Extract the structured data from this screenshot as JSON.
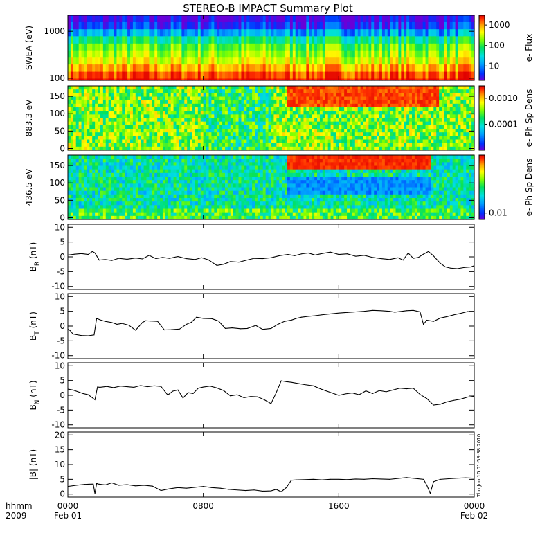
{
  "title": "STEREO-B IMPACT Summary Plot",
  "x_axis": {
    "row1_label": "hhmm",
    "row2_label": "2009",
    "ticks": [
      {
        "t": 0,
        "time": "0000",
        "date": "Feb 01"
      },
      {
        "t": 8,
        "time": "0800",
        "date": ""
      },
      {
        "t": 16,
        "time": "1600",
        "date": ""
      },
      {
        "t": 24,
        "time": "0000",
        "date": "Feb 02"
      }
    ]
  },
  "timestamp": "Thu Jun 10 01:53:38 2010",
  "colors": {
    "spectrogram_scale": [
      "#6a00d8",
      "#0030ff",
      "#00a0ff",
      "#00e0e0",
      "#00e060",
      "#80ff00",
      "#ffff00",
      "#ffa000",
      "#ff3000",
      "#e00000"
    ],
    "line": "#000000",
    "axes": "#000000"
  },
  "chart_data": [
    {
      "id": "swea",
      "type": "heatmap",
      "ylabel": "SWEA (eV)",
      "yscale": "log",
      "ylim": [
        90,
        2200
      ],
      "yticks": [
        100,
        1000
      ],
      "yticklabels": [
        "100",
        "1000"
      ],
      "colorbar_label": "e- Flux",
      "colorbar_scale": "log",
      "colorbar_range": [
        2,
        3000
      ],
      "colorbar_ticks": [
        10,
        100,
        1000
      ],
      "colorbar_ticklabels": [
        "10",
        "100",
        "1000"
      ],
      "energy_bands_eV": [
        100,
        140,
        200,
        280,
        400,
        560,
        800,
        1130,
        1600,
        2200
      ],
      "band_flux": [
        2500,
        1200,
        500,
        220,
        140,
        90,
        40,
        12,
        4,
        2.5
      ]
    },
    {
      "id": "pad883",
      "type": "heatmap",
      "ylabel": "883.3 eV",
      "ylim": [
        -5,
        180
      ],
      "yticks": [
        0,
        50,
        100,
        150
      ],
      "yticklabels": [
        "0",
        "50",
        "100",
        "150"
      ],
      "colorbar_label": "e- Ph Sp Dens",
      "colorbar_scale": "log",
      "colorbar_range": [
        1e-05,
        0.003
      ],
      "colorbar_ticks": [
        0.0001,
        0.001
      ],
      "colorbar_ticklabels": [
        "0.0001",
        "0.0010"
      ]
    },
    {
      "id": "pad436",
      "type": "heatmap",
      "ylabel": "436.5 eV",
      "ylim": [
        -5,
        180
      ],
      "yticks": [
        0,
        50,
        100,
        150
      ],
      "yticklabels": [
        "0",
        "50",
        "100",
        "150"
      ],
      "colorbar_label": "e- Ph Sp Dens",
      "colorbar_scale": "log",
      "colorbar_range": [
        0.007,
        0.25
      ],
      "colorbar_ticks": [
        0.01
      ],
      "colorbar_ticklabels": [
        "0.01"
      ]
    },
    {
      "id": "br",
      "type": "line",
      "ylabel_main": "B",
      "ylabel_sub": "R",
      "ylabel_unit": " (nT)",
      "ylim": [
        -11,
        11
      ],
      "yticks": [
        -10,
        -5,
        0,
        5,
        10
      ],
      "yticklabels": [
        "-10",
        "-5",
        "0",
        "5",
        "10"
      ],
      "x": [
        0,
        0.4,
        0.8,
        1.2,
        1.45,
        1.6,
        1.85,
        2.2,
        2.6,
        3.0,
        3.5,
        4.0,
        4.4,
        4.8,
        5.2,
        5.6,
        6.0,
        6.5,
        7.0,
        7.5,
        7.9,
        8.3,
        8.8,
        9.2,
        9.6,
        10.1,
        10.5,
        11.0,
        11.5,
        12.0,
        12.5,
        13.0,
        13.4,
        13.8,
        14.2,
        14.6,
        15.0,
        15.5,
        16.0,
        16.5,
        17.0,
        17.5,
        18.0,
        18.5,
        19.0,
        19.5,
        19.8,
        20.1,
        20.4,
        20.7,
        21.0,
        21.3,
        21.6,
        22.0,
        22.3,
        22.6,
        23.0,
        23.4,
        23.8,
        24.0
      ],
      "y": [
        0.6,
        0.9,
        1.1,
        0.8,
        1.8,
        1.3,
        -1.1,
        -0.9,
        -1.2,
        -0.5,
        -0.8,
        -0.4,
        -0.7,
        0.5,
        -0.6,
        -0.2,
        -0.5,
        0.1,
        -0.6,
        -0.9,
        -0.3,
        -1.0,
        -2.9,
        -2.5,
        -1.6,
        -1.8,
        -1.2,
        -0.5,
        -0.6,
        -0.3,
        0.4,
        0.8,
        0.4,
        1.0,
        1.3,
        0.6,
        1.1,
        1.6,
        0.8,
        1.0,
        0.2,
        0.5,
        -0.2,
        -0.6,
        -0.9,
        -0.3,
        -1.1,
        1.3,
        -0.5,
        -0.2,
        0.9,
        1.8,
        0.3,
        -2.2,
        -3.4,
        -3.8,
        -4.0,
        -3.6,
        -3.4,
        -3.0
      ]
    },
    {
      "id": "bt",
      "type": "line",
      "ylabel_main": "B",
      "ylabel_sub": "T",
      "ylabel_unit": " (nT)",
      "ylim": [
        -11,
        11
      ],
      "yticks": [
        -10,
        -5,
        0,
        5,
        10
      ],
      "yticklabels": [
        "-10",
        "-5",
        "0",
        "5",
        "10"
      ],
      "x": [
        0,
        0.15,
        0.3,
        0.5,
        0.8,
        1.2,
        1.55,
        1.7,
        1.9,
        2.2,
        2.6,
        2.9,
        3.2,
        3.6,
        4.0,
        4.4,
        4.6,
        4.9,
        5.3,
        5.7,
        6.1,
        6.6,
        7.0,
        7.3,
        7.6,
        8.0,
        8.5,
        8.9,
        9.3,
        9.7,
        10.2,
        10.6,
        11.1,
        11.5,
        12.0,
        12.4,
        12.8,
        13.2,
        13.5,
        13.8,
        14.2,
        14.6,
        15.0,
        15.5,
        16.0,
        16.5,
        17.0,
        17.5,
        18.0,
        18.5,
        19.0,
        19.3,
        19.6,
        20.0,
        20.4,
        20.8,
        21.0,
        21.2,
        21.6,
        22.0,
        22.4,
        22.8,
        23.2,
        23.6,
        24.0
      ],
      "y": [
        -1.0,
        -1.6,
        -2.7,
        -2.9,
        -3.2,
        -3.3,
        -3.0,
        2.6,
        2.1,
        1.6,
        1.2,
        0.6,
        0.9,
        0.3,
        -1.4,
        1.2,
        1.8,
        1.7,
        1.6,
        -1.3,
        -1.2,
        -1.0,
        0.6,
        1.3,
        3.0,
        2.6,
        2.5,
        1.7,
        -0.8,
        -0.6,
        -0.9,
        -0.8,
        0.2,
        -1.1,
        -0.8,
        0.6,
        1.6,
        2.0,
        2.6,
        3.0,
        3.3,
        3.5,
        3.8,
        4.1,
        4.4,
        4.6,
        4.8,
        5.0,
        5.3,
        5.2,
        5.0,
        4.7,
        4.9,
        5.2,
        5.3,
        4.8,
        0.6,
        2.0,
        1.6,
        2.7,
        3.2,
        3.8,
        4.3,
        4.9,
        4.8
      ]
    },
    {
      "id": "bn",
      "type": "line",
      "ylabel_main": "B",
      "ylabel_sub": "N",
      "ylabel_unit": " (nT)",
      "ylim": [
        -11,
        11
      ],
      "yticks": [
        -10,
        -5,
        0,
        5,
        10
      ],
      "yticklabels": [
        "-10",
        "-5",
        "0",
        "5",
        "10"
      ],
      "x": [
        0,
        0.3,
        0.6,
        0.9,
        1.2,
        1.4,
        1.6,
        1.75,
        1.9,
        2.3,
        2.7,
        3.1,
        3.5,
        3.9,
        4.3,
        4.7,
        5.1,
        5.5,
        5.9,
        6.2,
        6.5,
        6.8,
        7.1,
        7.4,
        7.7,
        8.0,
        8.4,
        8.8,
        9.2,
        9.6,
        10.0,
        10.4,
        10.8,
        11.2,
        11.6,
        12.0,
        12.3,
        12.6,
        12.9,
        13.2,
        13.6,
        14.0,
        14.5,
        15.0,
        15.5,
        16.0,
        16.4,
        16.8,
        17.2,
        17.6,
        18.0,
        18.4,
        18.8,
        19.2,
        19.6,
        20.0,
        20.4,
        20.8,
        21.2,
        21.6,
        22.0,
        22.4,
        22.8,
        23.2,
        23.6,
        24.0
      ],
      "y": [
        2.1,
        1.8,
        1.2,
        0.6,
        0.2,
        -0.6,
        -1.5,
        2.8,
        2.7,
        3.0,
        2.6,
        3.1,
        2.9,
        2.7,
        3.3,
        2.9,
        3.2,
        3.0,
        0.1,
        1.4,
        1.8,
        -0.9,
        0.9,
        0.6,
        2.4,
        2.8,
        3.1,
        2.5,
        1.6,
        -0.2,
        0.2,
        -0.8,
        -0.4,
        -0.5,
        -1.5,
        -2.8,
        0.8,
        4.9,
        4.6,
        4.4,
        4.0,
        3.6,
        3.2,
        2.0,
        1.0,
        0.0,
        0.5,
        0.8,
        0.2,
        1.5,
        0.6,
        1.6,
        1.2,
        1.8,
        2.4,
        2.2,
        2.4,
        0.3,
        -1.1,
        -3.3,
        -3.0,
        -2.2,
        -1.7,
        -1.3,
        -0.6,
        -0.3
      ]
    },
    {
      "id": "bmag",
      "type": "line",
      "ylabel_main": "|B|",
      "ylabel_sub": "",
      "ylabel_unit": " (nT)",
      "ylim": [
        -1,
        21
      ],
      "yticks": [
        0,
        5,
        10,
        15,
        20
      ],
      "yticklabels": [
        "0",
        "5",
        "10",
        "15",
        "20"
      ],
      "x": [
        0,
        0.5,
        1.0,
        1.5,
        1.6,
        1.7,
        1.8,
        2.2,
        2.6,
        3.0,
        3.5,
        4.0,
        4.5,
        5.0,
        5.5,
        6.0,
        6.5,
        7.0,
        7.5,
        8.0,
        8.5,
        9.0,
        9.5,
        10.0,
        10.5,
        11.0,
        11.5,
        12.0,
        12.3,
        12.6,
        12.9,
        13.2,
        13.5,
        14.0,
        14.5,
        15.0,
        15.5,
        16.0,
        16.5,
        17.0,
        17.5,
        18.0,
        18.5,
        19.0,
        19.5,
        20.0,
        20.5,
        21.0,
        21.2,
        21.4,
        21.6,
        22.0,
        22.5,
        23.0,
        23.5,
        24.0
      ],
      "y": [
        2.6,
        3.0,
        3.3,
        3.4,
        0.2,
        3.6,
        3.4,
        3.1,
        3.8,
        3.0,
        3.2,
        2.8,
        3.0,
        2.7,
        1.2,
        1.8,
        2.2,
        2.0,
        2.3,
        2.6,
        2.2,
        2.0,
        1.6,
        1.4,
        1.2,
        1.4,
        1.0,
        1.1,
        1.6,
        0.8,
        2.2,
        4.7,
        4.8,
        4.9,
        5.0,
        4.8,
        5.0,
        5.0,
        4.9,
        5.1,
        5.0,
        5.2,
        5.1,
        5.0,
        5.3,
        5.6,
        5.3,
        5.0,
        3.0,
        0.3,
        4.2,
        5.0,
        5.2,
        5.4,
        5.5,
        5.4
      ]
    }
  ]
}
